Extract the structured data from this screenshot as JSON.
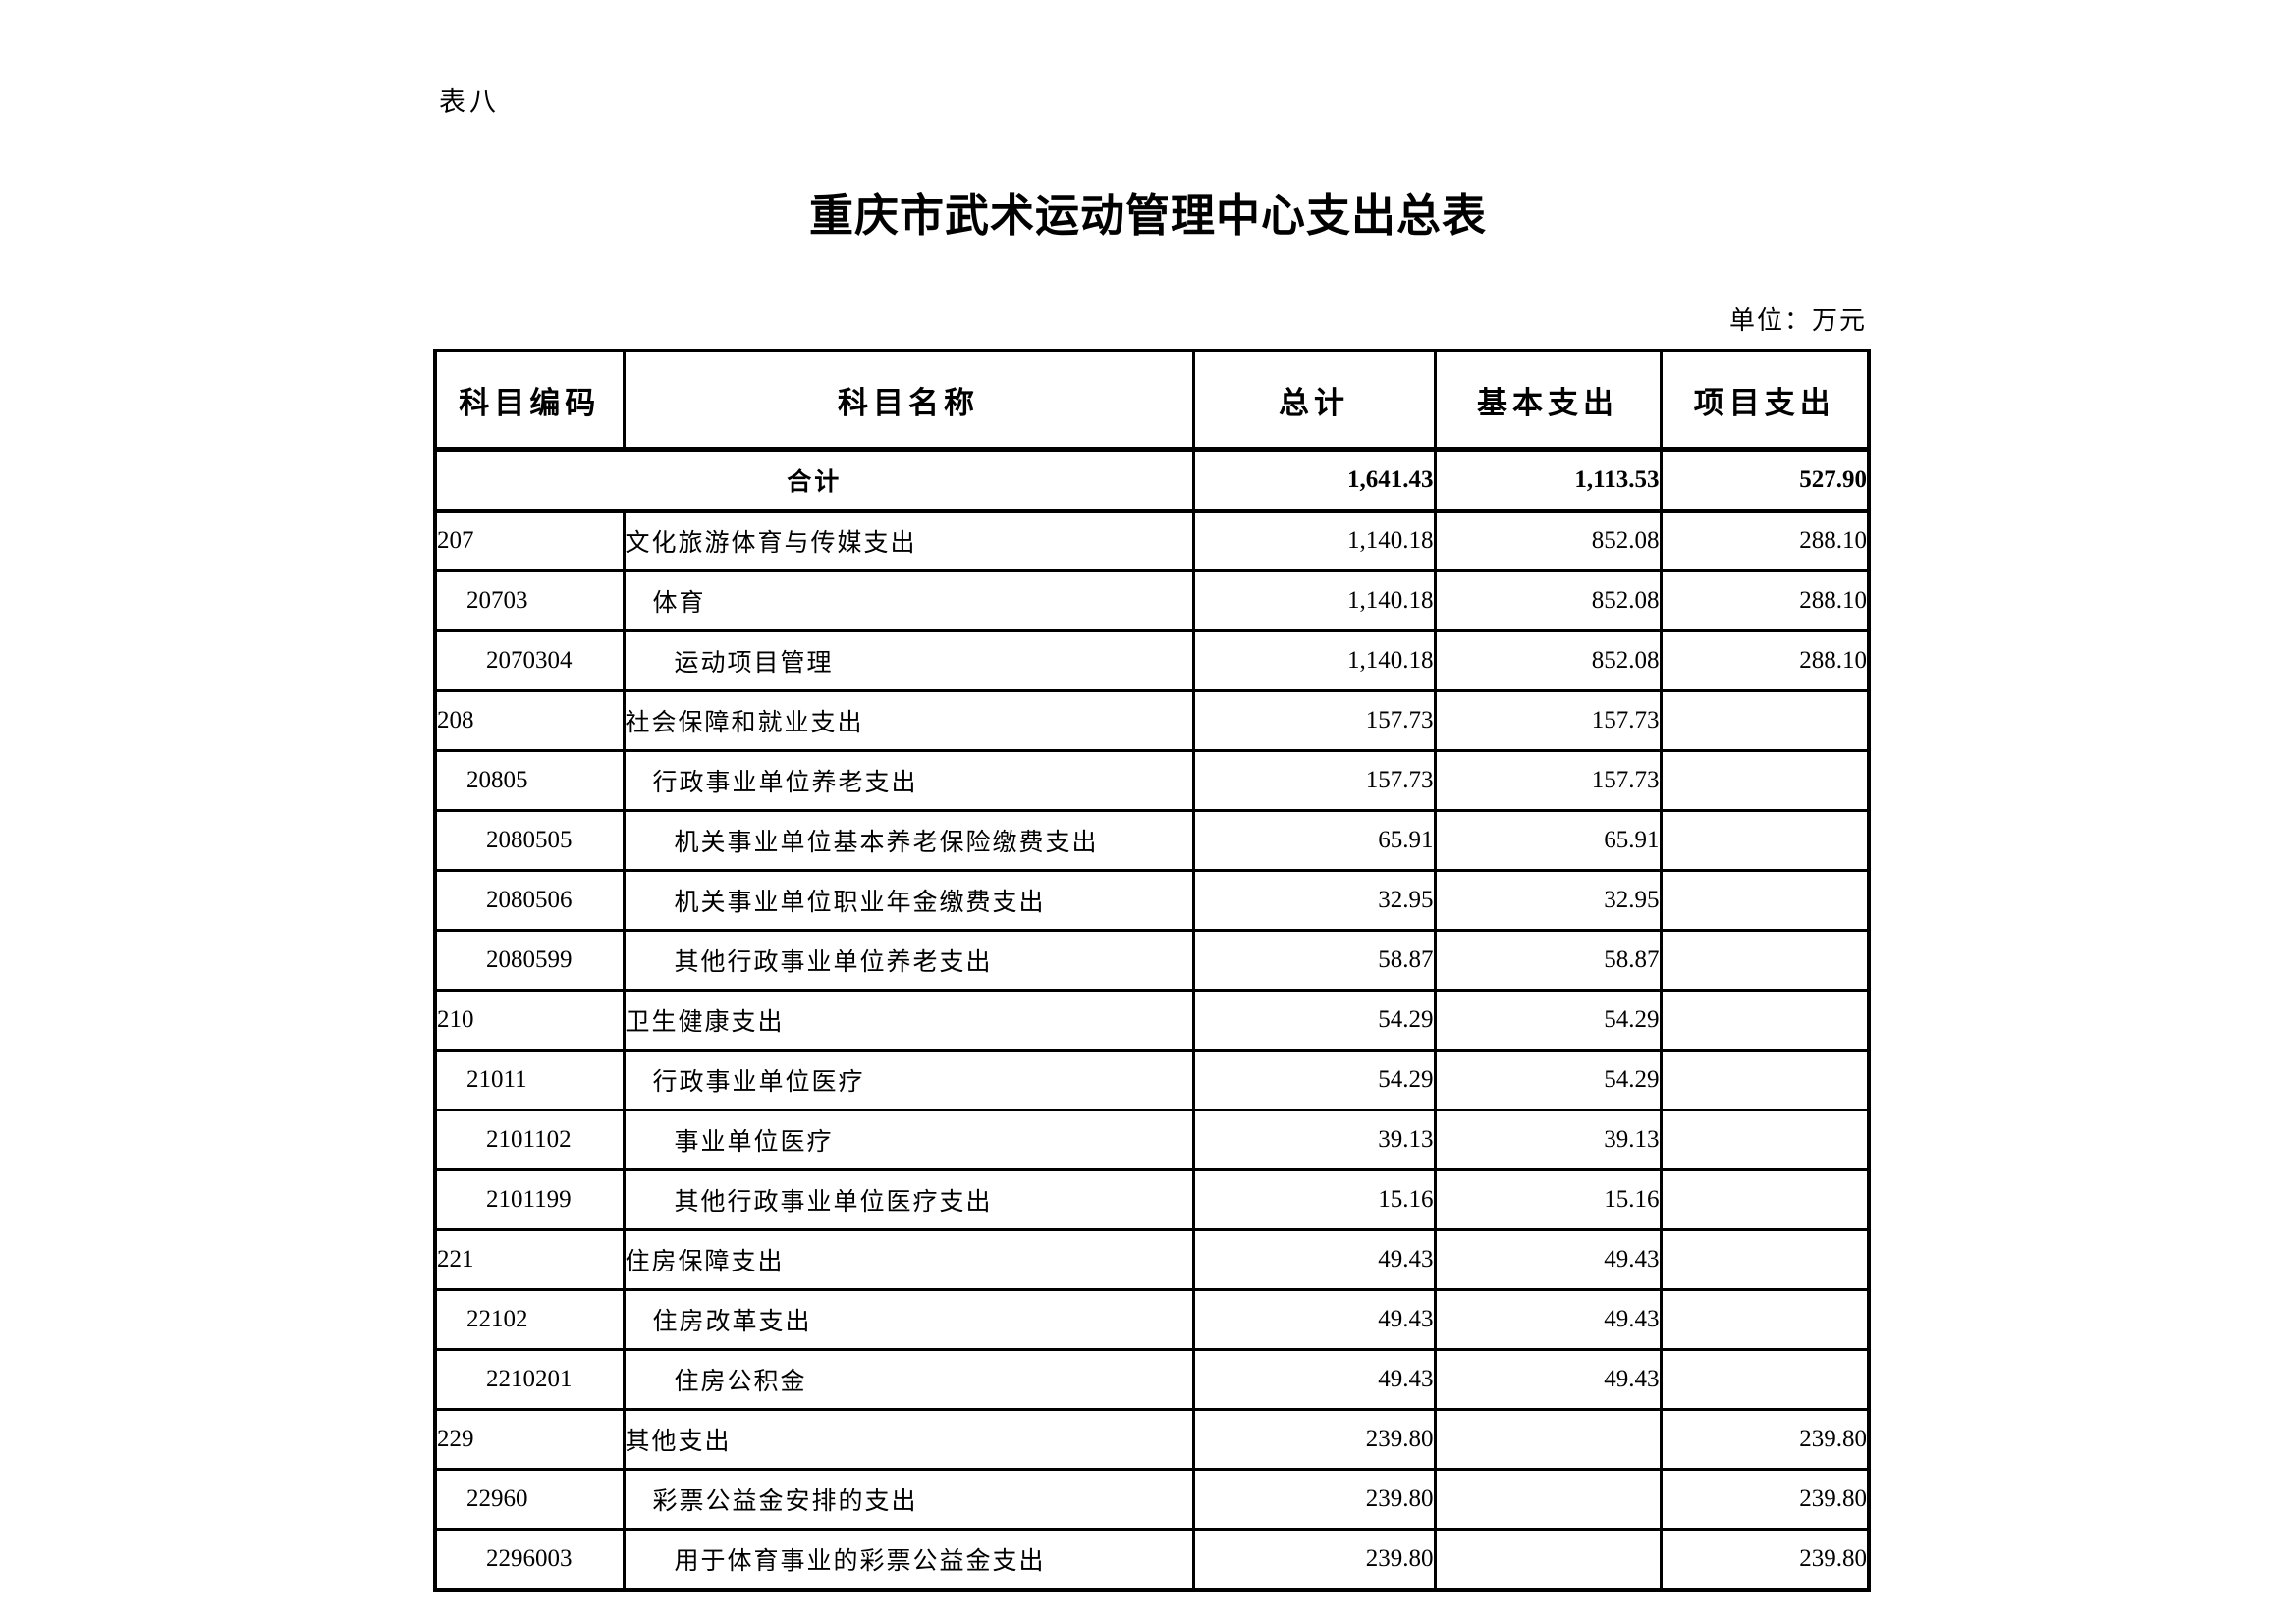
{
  "page": {
    "table_label": "表八",
    "title": "重庆市武术运动管理中心支出总表",
    "unit_note": "单位：万元"
  },
  "table": {
    "headers": [
      "科目编码",
      "科目名称",
      "总计",
      "基本支出",
      "项目支出"
    ],
    "total_row": {
      "label": "合计",
      "total": "1,641.43",
      "basic": "1,113.53",
      "project": "527.90"
    },
    "rows": [
      {
        "code": "207",
        "name": "文化旅游体育与传媒支出",
        "total": "1,140.18",
        "basic": "852.08",
        "project": "288.10",
        "level": 0
      },
      {
        "code": "20703",
        "name": "体育",
        "total": "1,140.18",
        "basic": "852.08",
        "project": "288.10",
        "level": 1
      },
      {
        "code": "2070304",
        "name": "运动项目管理",
        "total": "1,140.18",
        "basic": "852.08",
        "project": "288.10",
        "level": 2
      },
      {
        "code": "208",
        "name": "社会保障和就业支出",
        "total": "157.73",
        "basic": "157.73",
        "project": "",
        "level": 0
      },
      {
        "code": "20805",
        "name": "行政事业单位养老支出",
        "total": "157.73",
        "basic": "157.73",
        "project": "",
        "level": 1
      },
      {
        "code": "2080505",
        "name": "机关事业单位基本养老保险缴费支出",
        "total": "65.91",
        "basic": "65.91",
        "project": "",
        "level": 2
      },
      {
        "code": "2080506",
        "name": "机关事业单位职业年金缴费支出",
        "total": "32.95",
        "basic": "32.95",
        "project": "",
        "level": 2
      },
      {
        "code": "2080599",
        "name": "其他行政事业单位养老支出",
        "total": "58.87",
        "basic": "58.87",
        "project": "",
        "level": 2
      },
      {
        "code": "210",
        "name": "卫生健康支出",
        "total": "54.29",
        "basic": "54.29",
        "project": "",
        "level": 0
      },
      {
        "code": "21011",
        "name": "行政事业单位医疗",
        "total": "54.29",
        "basic": "54.29",
        "project": "",
        "level": 1
      },
      {
        "code": "2101102",
        "name": "事业单位医疗",
        "total": "39.13",
        "basic": "39.13",
        "project": "",
        "level": 2
      },
      {
        "code": "2101199",
        "name": "其他行政事业单位医疗支出",
        "total": "15.16",
        "basic": "15.16",
        "project": "",
        "level": 2
      },
      {
        "code": "221",
        "name": "住房保障支出",
        "total": "49.43",
        "basic": "49.43",
        "project": "",
        "level": 0
      },
      {
        "code": "22102",
        "name": "住房改革支出",
        "total": "49.43",
        "basic": "49.43",
        "project": "",
        "level": 1
      },
      {
        "code": "2210201",
        "name": "住房公积金",
        "total": "49.43",
        "basic": "49.43",
        "project": "",
        "level": 2
      },
      {
        "code": "229",
        "name": "其他支出",
        "total": "239.80",
        "basic": "",
        "project": "239.80",
        "level": 0
      },
      {
        "code": "22960",
        "name": "彩票公益金安排的支出",
        "total": "239.80",
        "basic": "",
        "project": "239.80",
        "level": 1
      },
      {
        "code": "2296003",
        "name": "用于体育事业的彩票公益金支出",
        "total": "239.80",
        "basic": "",
        "project": "239.80",
        "level": 2
      }
    ]
  }
}
